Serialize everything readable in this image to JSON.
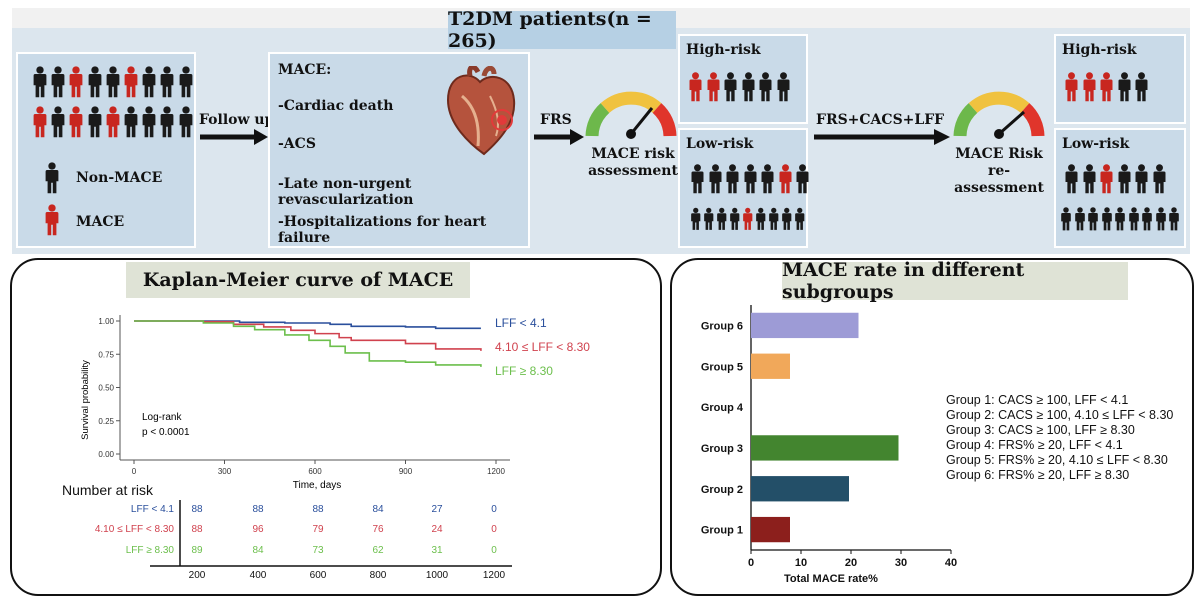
{
  "header": {
    "title": "T2DM patients(n = 265)"
  },
  "colors": {
    "mace_red": "#c8261f",
    "person_black": "#1a1a1a",
    "band_bg": "#dce6ee",
    "panel_bg": "#c9dae8"
  },
  "population": {
    "non_mace_label": "Non-MACE",
    "mace_label": "MACE",
    "row1": [
      0,
      0,
      1,
      0,
      0,
      1,
      0,
      0,
      0
    ],
    "row2": [
      1,
      0,
      1,
      0,
      1,
      0,
      0,
      0,
      0
    ]
  },
  "flow": {
    "follow_up": "Follow up",
    "frs": "FRS",
    "frs_combo": "FRS+CACS+LFF",
    "risk_assessment": [
      "MACE risk",
      "assessment"
    ],
    "risk_reassessment": [
      "MACE Risk",
      "re-assessment"
    ]
  },
  "mace_definition": {
    "title": "MACE:",
    "items": [
      "-Cardiac death",
      "-ACS",
      "-Late non-urgent revascularization",
      "-Hospitalizations for heart failure"
    ]
  },
  "groups_frs": {
    "high": {
      "label": "High-risk",
      "row": [
        1,
        1,
        0,
        0,
        0,
        0
      ]
    },
    "low": {
      "label": "Low-risk",
      "row1": [
        0,
        0,
        0,
        0,
        0,
        1,
        0
      ],
      "row2": [
        0,
        0,
        0,
        0,
        1,
        0,
        0,
        0,
        0
      ]
    }
  },
  "groups_combo": {
    "high": {
      "label": "High-risk",
      "row": [
        1,
        1,
        1,
        0,
        0
      ]
    },
    "low": {
      "label": "Low-risk",
      "row1": [
        0,
        0,
        1,
        0,
        0,
        0
      ],
      "row2": [
        0,
        0,
        0,
        0,
        0,
        0,
        0,
        0,
        0
      ]
    }
  },
  "km": {
    "section_title": "Kaplan-Meier curve of MACE",
    "ylabel": "Survival probability",
    "xlabel": "Time, days",
    "yticks": [
      "1.00",
      "0.75",
      "0.50",
      "0.25",
      "0.00"
    ],
    "xticks": [
      "0",
      "300",
      "600",
      "900",
      "1200"
    ],
    "logrank": "Log-rank",
    "pvalue": "p < 0.0001",
    "risk_title": "Number at risk",
    "risk_xticks": [
      "200",
      "400",
      "600",
      "800",
      "1000",
      "1200"
    ]
  },
  "chart_data": [
    {
      "type": "line",
      "title": "Kaplan-Meier curve of MACE",
      "xlabel": "Time, days",
      "ylabel": "Survival probability",
      "xlim": [
        0,
        1200
      ],
      "ylim": [
        0,
        1
      ],
      "series": [
        {
          "name": "LFF < 4.1",
          "color": "#2a4f9c",
          "x": [
            0,
            230,
            350,
            500,
            650,
            720,
            900,
            1000,
            1150
          ],
          "y": [
            1.0,
            1.0,
            0.99,
            0.985,
            0.975,
            0.96,
            0.955,
            0.945,
            0.945
          ]
        },
        {
          "name": "4.10 ≤ LFF < 8.30",
          "color": "#d0424e",
          "x": [
            0,
            230,
            330,
            430,
            520,
            600,
            680,
            720,
            900,
            1000,
            1150
          ],
          "y": [
            1.0,
            0.995,
            0.975,
            0.955,
            0.93,
            0.905,
            0.875,
            0.855,
            0.83,
            0.79,
            0.775
          ]
        },
        {
          "name": "LFF ≥ 8.30",
          "color": "#6cbf4c",
          "x": [
            0,
            230,
            330,
            400,
            500,
            580,
            650,
            700,
            780,
            900,
            1000,
            1150
          ],
          "y": [
            1.0,
            0.985,
            0.96,
            0.935,
            0.895,
            0.855,
            0.81,
            0.76,
            0.7,
            0.69,
            0.67,
            0.655
          ]
        }
      ],
      "annotations": [
        "Log-rank",
        "p < 0.0001"
      ],
      "risk_table": {
        "title": "Number at risk",
        "time_points": [
          200,
          400,
          600,
          800,
          1000,
          1200
        ],
        "rows": [
          {
            "name": "LFF < 4.1",
            "values": [
              "88",
              "88",
              "88",
              "84",
              "27",
              "0"
            ]
          },
          {
            "name": "4.10 ≤ LFF < 8.30",
            "values": [
              "88",
              "96",
              "79",
              "76",
              "24",
              "0"
            ]
          },
          {
            "name": "LFF ≥ 8.30",
            "values": [
              "89",
              "84",
              "73",
              "62",
              "31",
              "0"
            ]
          }
        ]
      }
    },
    {
      "type": "bar",
      "title": "MACE rate in different subgroups",
      "orientation": "horizontal",
      "categories": [
        "Group 1",
        "Group 2",
        "Group 3",
        "Group 4",
        "Group 5",
        "Group 6"
      ],
      "values": [
        7.8,
        19.6,
        29.5,
        0,
        7.8,
        21.5
      ],
      "colors": [
        "#8c1f1c",
        "#234f68",
        "#43852f",
        "#888888",
        "#f1a85a",
        "#9d9bd6"
      ],
      "xlabel": "Total MACE rate%",
      "xlim": [
        0,
        40
      ],
      "xticks": [
        "0",
        "10",
        "20",
        "30",
        "40"
      ]
    }
  ],
  "subgroups": {
    "section_title": "MACE rate in different subgroups",
    "legend": [
      "Group 1:  CACS ≥ 100, LFF < 4.1",
      "Group 2:  CACS ≥ 100, 4.10 ≤ LFF < 8.30",
      "Group 3:  CACS ≥ 100, LFF ≥ 8.30",
      "Group 4:  FRS% ≥ 20, LFF < 4.1",
      "Group 5:  FRS% ≥ 20, 4.10 ≤ LFF < 8.30",
      "Group 6:  FRS% ≥ 20, LFF ≥ 8.30"
    ]
  }
}
